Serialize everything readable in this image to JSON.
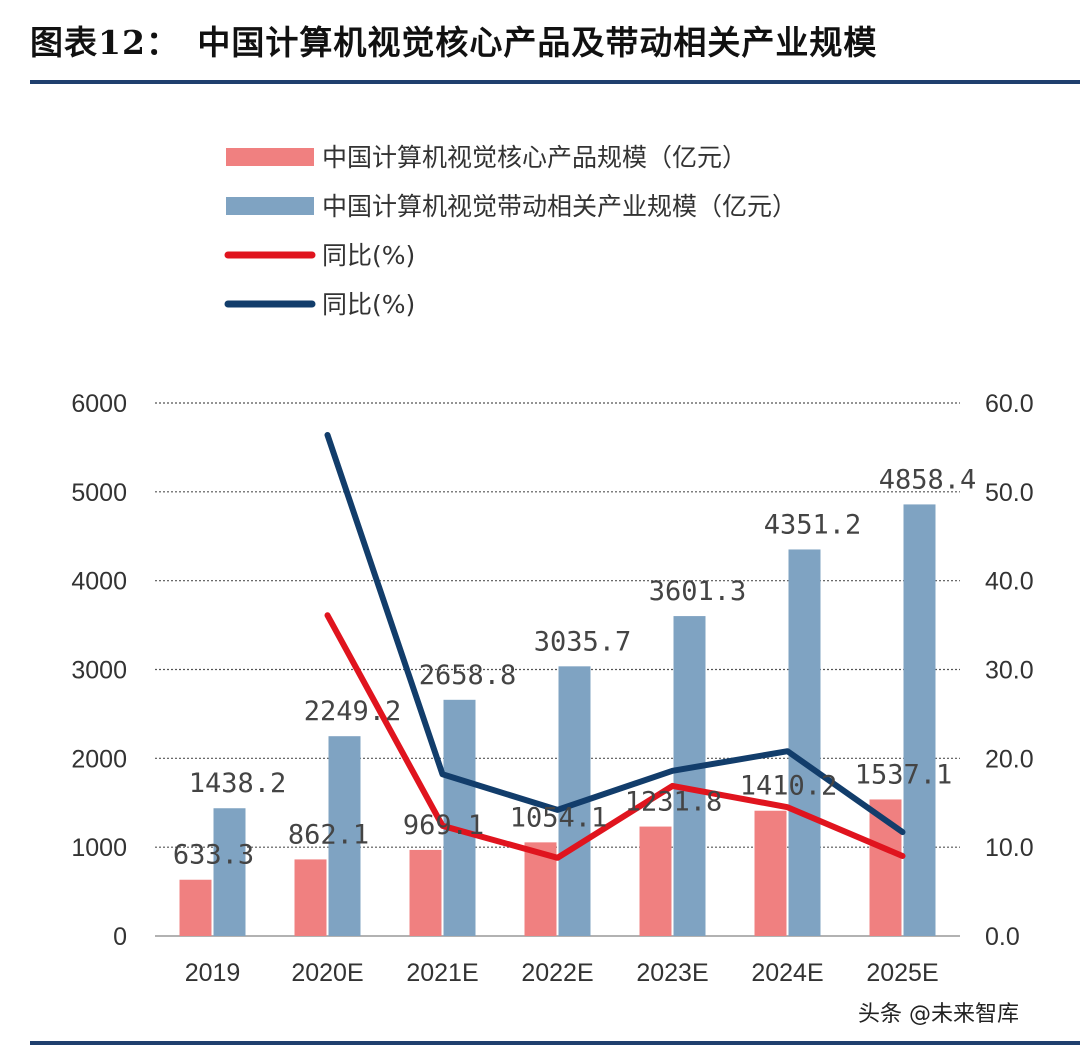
{
  "title": "图表12：　中国计算机视觉核心产品及带动相关产业规模",
  "watermark": "头条 @未来智库",
  "colors": {
    "core_bar": "#f08080",
    "related_bar": "#7fa3c2",
    "core_line": "#e0141e",
    "related_line": "#123d6b",
    "rule": "#1f3f6e"
  },
  "chart_data": {
    "type": "bar",
    "categories": [
      "2019",
      "2020E",
      "2021E",
      "2022E",
      "2023E",
      "2024E",
      "2025E"
    ],
    "series": [
      {
        "name": "中国计算机视觉核心产品规模（亿元）",
        "kind": "bar",
        "axis": "left",
        "values": [
          633.3,
          862.1,
          969.1,
          1054.1,
          1231.8,
          1410.2,
          1537.1
        ],
        "labels": [
          "633.3",
          "862.1",
          "969.1",
          "1054.1",
          "1231.8",
          "1410.2",
          "1537.1"
        ]
      },
      {
        "name": "中国计算机视觉带动相关产业规模（亿元）",
        "kind": "bar",
        "axis": "left",
        "values": [
          1438.2,
          2249.2,
          2658.8,
          3035.7,
          3601.3,
          4351.2,
          4858.4
        ],
        "labels": [
          "1438.2",
          "2249.2",
          "2658.8",
          "3035.7",
          "3601.3",
          "4351.2",
          "4858.4"
        ]
      },
      {
        "name": "同比(%)",
        "kind": "line",
        "axis": "right",
        "of": "core",
        "values": [
          null,
          36.1,
          12.4,
          8.8,
          16.9,
          14.5,
          9.0
        ]
      },
      {
        "name": "同比(%)",
        "kind": "line",
        "axis": "right",
        "of": "related",
        "values": [
          null,
          56.4,
          18.2,
          14.2,
          18.6,
          20.8,
          11.7
        ]
      }
    ],
    "y_left": {
      "min": 0,
      "max": 6000,
      "ticks": [
        "0",
        "1000",
        "2000",
        "3000",
        "4000",
        "5000",
        "6000"
      ]
    },
    "y_right": {
      "min": 0,
      "max": 60,
      "ticks": [
        "0.0",
        "10.0",
        "20.0",
        "30.0",
        "40.0",
        "50.0",
        "60.0"
      ]
    },
    "grid": "horizontal dotted",
    "legend_position": "top"
  }
}
